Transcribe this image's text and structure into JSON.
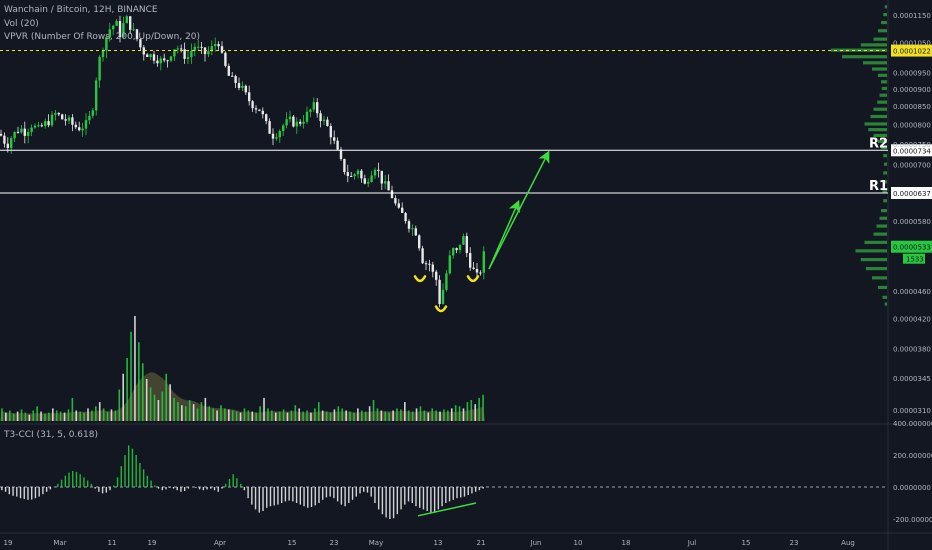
{
  "header": {
    "symbol_line": "Wanchain / Bitcoin, 12H, BINANCE",
    "vol_line": "Vol (20)",
    "vpvr_line": "VPVR (Number Of Rows, 200, Up/Down, 20)",
    "cci_line": "T3-CCI (31, 5, 0.618)"
  },
  "colors": {
    "background": "#131722",
    "up": "#26c83f",
    "down": "#e8e8e8",
    "accent_yellow": "#f2e21b",
    "arrow_green": "#3ddc3d",
    "price_tag_bg": "#26c83f",
    "current_line": "#f2e21b"
  },
  "chart_data": [
    {
      "type": "candlestick",
      "title": "Wanchain / Bitcoin, 12H, BINANCE",
      "y_axis": {
        "scale": "log",
        "range": [
          2.9e-05,
          0.0001185
        ],
        "tick_labels": [
          "0.0001150",
          "0.0001050",
          "0.0000950",
          "0.0000900",
          "0.0000850",
          "0.0000800",
          "0.0000750",
          "0.0000700",
          "0.0000580",
          "0.0000460",
          "0.0000420",
          "0.0000380",
          "0.0000345",
          "0.0000310"
        ]
      },
      "x_axis": {
        "tick_labels": [
          "19",
          "Mar",
          "11",
          "19",
          "Apr",
          "15",
          "23",
          "May",
          "13",
          "21",
          "Jun",
          "10",
          "18",
          "Jul",
          "15",
          "23",
          "Aug"
        ]
      },
      "close_path": [
        [
          0,
          7.75e-05
        ],
        [
          7,
          7.45e-05
        ],
        [
          12,
          7.7e-05
        ],
        [
          20,
          7.9e-05
        ],
        [
          25,
          7.8e-05
        ],
        [
          32,
          8e-05
        ],
        [
          38,
          7.85e-05
        ],
        [
          44,
          8e-05
        ],
        [
          50,
          8.1e-05
        ],
        [
          56,
          8.3e-05
        ],
        [
          62,
          8.15e-05
        ],
        [
          68,
          8.1e-05
        ],
        [
          74,
          7.95e-05
        ],
        [
          80,
          7.9e-05
        ],
        [
          86,
          8e-05
        ],
        [
          92,
          8.3e-05
        ],
        [
          96,
          9.3e-05
        ],
        [
          100,
          0.0001
        ],
        [
          104,
          0.000105
        ],
        [
          110,
          0.00011
        ],
        [
          116,
          0.000112
        ],
        [
          120,
          0.000108
        ],
        [
          126,
          0.000114
        ],
        [
          130,
          0.000111
        ],
        [
          136,
          0.000107
        ],
        [
          142,
          0.000102
        ],
        [
          148,
          0.000101
        ],
        [
          154,
          0.0001
        ],
        [
          160,
          9.9e-05
        ],
        [
          166,
          9.8e-05
        ],
        [
          170,
          0.000101
        ],
        [
          176,
          0.000104
        ],
        [
          182,
          0.000101
        ],
        [
          188,
          0.0001
        ],
        [
          194,
          0.000104
        ],
        [
          200,
          0.000102
        ],
        [
          206,
          0.000101
        ],
        [
          212,
          0.000103
        ],
        [
          218,
          0.000106
        ],
        [
          222,
          0.0001
        ],
        [
          226,
          9.6e-05
        ],
        [
          230,
          9.3e-05
        ],
        [
          236,
          9.2e-05
        ],
        [
          242,
          9e-05
        ],
        [
          248,
          8.7e-05
        ],
        [
          254,
          8.5e-05
        ],
        [
          260,
          8.4e-05
        ],
        [
          266,
          8e-05
        ],
        [
          272,
          7.7e-05
        ],
        [
          278,
          7.8e-05
        ],
        [
          284,
          8e-05
        ],
        [
          290,
          8.1e-05
        ],
        [
          296,
          8e-05
        ],
        [
          302,
          8.1e-05
        ],
        [
          308,
          8.3e-05
        ],
        [
          314,
          8.5e-05
        ],
        [
          320,
          8.2e-05
        ],
        [
          326,
          8e-05
        ],
        [
          330,
          7.8e-05
        ],
        [
          336,
          7.4e-05
        ],
        [
          340,
          7.1e-05
        ],
        [
          346,
          6.8e-05
        ],
        [
          352,
          6.7e-05
        ],
        [
          358,
          6.9e-05
        ],
        [
          364,
          6.5e-05
        ],
        [
          370,
          6.8e-05
        ],
        [
          376,
          7e-05
        ],
        [
          380,
          6.7e-05
        ],
        [
          386,
          6.5e-05
        ],
        [
          392,
          6.3e-05
        ],
        [
          398,
          6e-05
        ],
        [
          404,
          5.9e-05
        ],
        [
          410,
          5.7e-05
        ],
        [
          416,
          5.6e-05
        ],
        [
          420,
          5.3e-05
        ],
        [
          424,
          5e-05
        ],
        [
          428,
          5.1e-05
        ],
        [
          432,
          4.9e-05
        ],
        [
          436,
          4.8e-05
        ],
        [
          440,
          4.4e-05
        ],
        [
          444,
          4.7e-05
        ],
        [
          448,
          5e-05
        ],
        [
          452,
          5.3e-05
        ],
        [
          456,
          5.2e-05
        ],
        [
          460,
          5.4e-05
        ],
        [
          464,
          5.5e-05
        ],
        [
          468,
          5.1e-05
        ],
        [
          472,
          5e-05
        ],
        [
          476,
          4.8e-05
        ],
        [
          480,
          4.9e-05
        ],
        [
          484,
          5.2e-05
        ]
      ],
      "horizontal_lines": [
        {
          "label": "R2",
          "price": 7.34e-05,
          "price_label": "0.0000734"
        },
        {
          "label": "R1",
          "price": 6.37e-05,
          "price_label": "0.0000637"
        }
      ],
      "current_price_line": {
        "price": 0.0001022,
        "price_label": "0.0001022"
      },
      "last_price": {
        "price": 5.33e-05,
        "price_label": "0.0000533",
        "volume_label": "1533"
      },
      "annotations": [
        {
          "type": "smile",
          "x": 420,
          "price": 4.83e-05
        },
        {
          "type": "smile",
          "x": 441,
          "price": 4.37e-05
        },
        {
          "type": "smile",
          "x": 473,
          "price": 4.83e-05
        },
        {
          "type": "arrow",
          "from": [
            489,
            4.95e-05
          ],
          "to": [
            518,
            6.17e-05
          ]
        },
        {
          "type": "arrow",
          "from": [
            489,
            4.95e-05
          ],
          "to": [
            548,
            7.27e-05
          ]
        }
      ]
    },
    {
      "type": "bar",
      "title": "Vol (20)",
      "x_end": 485,
      "values": [
        12,
        8,
        10,
        7,
        9,
        11,
        8,
        6,
        10,
        14,
        9,
        7,
        8,
        12,
        10,
        9,
        8,
        11,
        22,
        10,
        9,
        8,
        12,
        10,
        14,
        18,
        12,
        9,
        11,
        10,
        30,
        45,
        60,
        85,
        100,
        75,
        55,
        40,
        32,
        25,
        20,
        28,
        45,
        35,
        22,
        18,
        15,
        14,
        20,
        16,
        12,
        18,
        22,
        14,
        12,
        10,
        15,
        12,
        11,
        10,
        9,
        8,
        12,
        10,
        9,
        8,
        14,
        22,
        12,
        10,
        8,
        9,
        11,
        8,
        10,
        15,
        12,
        9,
        10,
        8,
        12,
        18,
        10,
        9,
        8,
        11,
        14,
        12,
        10,
        9,
        8,
        12,
        10,
        9,
        14,
        20,
        12,
        10,
        9,
        8,
        10,
        12,
        11,
        18,
        10,
        9,
        12,
        14,
        10,
        8,
        12,
        10,
        9,
        11,
        10,
        12,
        15,
        14,
        12,
        18,
        20,
        16,
        22,
        25
      ],
      "ma_envelope": true
    },
    {
      "type": "bar",
      "title": "T3-CCI (31, 5, 0.618)",
      "y_axis": {
        "range": [
          -260,
          430
        ],
        "tick_labels": [
          "400.0000000",
          "200.0000000",
          "0.0000000",
          "-200.0000000"
        ]
      },
      "x_end": 485,
      "values": [
        -20,
        -30,
        -45,
        -55,
        -60,
        -70,
        -75,
        -80,
        -78,
        -70,
        -60,
        -45,
        -30,
        -15,
        0,
        20,
        45,
        70,
        90,
        100,
        95,
        80,
        60,
        40,
        20,
        -10,
        -30,
        -40,
        -35,
        -20,
        10,
        60,
        130,
        200,
        260,
        240,
        200,
        150,
        110,
        70,
        40,
        10,
        -10,
        -20,
        -15,
        -5,
        -10,
        -20,
        -30,
        -25,
        -10,
        0,
        -5,
        -15,
        -20,
        -15,
        -10,
        -20,
        -30,
        -10,
        20,
        50,
        80,
        55,
        20,
        -20,
        -70,
        -110,
        -140,
        -160,
        -150,
        -130,
        -120,
        -115,
        -110,
        -100,
        -90,
        -85,
        -90,
        -100,
        -110,
        -120,
        -130,
        -125,
        -115,
        -100,
        -80,
        -65,
        -60,
        -70,
        -90,
        -110,
        -120,
        -100,
        -80,
        -60,
        -40,
        -30,
        -35,
        -60,
        -100,
        -140,
        -170,
        -190,
        -200,
        -195,
        -170,
        -140,
        -110,
        -90,
        -100,
        -120,
        -130,
        -140,
        -150,
        -160,
        -155,
        -140,
        -120,
        -100,
        -90,
        -80,
        -70,
        -65,
        -60,
        -50,
        -40,
        -30,
        -20,
        -10
      ],
      "divergence_line": {
        "from": [
          418,
          -180
        ],
        "to": [
          476,
          -100
        ]
      },
      "zero_line": 0
    },
    {
      "type": "bar",
      "title": "VPVR (Number Of Rows, 200, Up/Down, 20)",
      "orientation": "horizontal",
      "profile": [
        [
          0.000118,
          0.03
        ],
        [
          0.000115,
          0.05
        ],
        [
          0.000112,
          0.08
        ],
        [
          0.000109,
          0.12
        ],
        [
          0.000106,
          0.18
        ],
        [
          0.000104,
          0.35
        ],
        [
          0.0001022,
          0.75
        ],
        [
          0.0001,
          0.6
        ],
        [
          9.8e-05,
          0.32
        ],
        [
          9.6e-05,
          0.2
        ],
        [
          9.4e-05,
          0.12
        ],
        [
          9.2e-05,
          0.08
        ],
        [
          9e-05,
          0.07
        ],
        [
          8.8e-05,
          0.1
        ],
        [
          8.6e-05,
          0.13
        ],
        [
          8.4e-05,
          0.18
        ],
        [
          8.2e-05,
          0.22
        ],
        [
          8e-05,
          0.3
        ],
        [
          7.85e-05,
          0.25
        ],
        [
          7.7e-05,
          0.18
        ],
        [
          7.55e-05,
          0.12
        ],
        [
          7.4e-05,
          0.08
        ],
        [
          7.2e-05,
          0.05
        ],
        [
          7e-05,
          0.04
        ],
        [
          6.8e-05,
          0.05
        ],
        [
          6.6e-05,
          0.04
        ],
        [
          6.4e-05,
          0.06
        ],
        [
          6.2e-05,
          0.05
        ],
        [
          6e-05,
          0.08
        ],
        [
          5.85e-05,
          0.1
        ],
        [
          5.7e-05,
          0.14
        ],
        [
          5.55e-05,
          0.18
        ],
        [
          5.4e-05,
          0.3
        ],
        [
          5.25e-05,
          0.42
        ],
        [
          5.1e-05,
          0.35
        ],
        [
          4.95e-05,
          0.28
        ],
        [
          4.8e-05,
          0.2
        ],
        [
          4.65e-05,
          0.12
        ],
        [
          4.5e-05,
          0.06
        ],
        [
          4.4e-05,
          0.03
        ]
      ]
    }
  ]
}
